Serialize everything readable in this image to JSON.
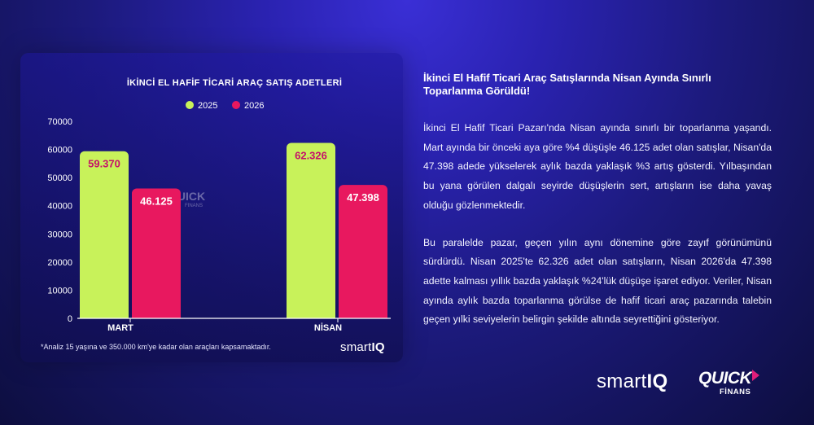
{
  "chart_data": {
    "type": "bar",
    "title": "İKİNCİ EL HAFİF TİCARİ ARAÇ SATIŞ ADETLERİ",
    "categories": [
      "MART",
      "NİSAN"
    ],
    "series": [
      {
        "name": "2025",
        "values": [
          59370,
          62326
        ],
        "labels": [
          "59.370",
          "62.326"
        ],
        "color": "#c8f25a"
      },
      {
        "name": "2026",
        "values": [
          46125,
          47398
        ],
        "labels": [
          "46.125",
          "47.398"
        ],
        "color": "#e8185f"
      }
    ],
    "ylim": [
      0,
      70000
    ],
    "yticks": [
      0,
      10000,
      20000,
      30000,
      40000,
      50000,
      60000,
      70000
    ],
    "xlabel": "",
    "ylabel": "",
    "legend_position": "top-center",
    "grid": false
  },
  "watermark": {
    "word": "QUICK",
    "sub": "FİNANS"
  },
  "footnote": "*Analiz 15 yaşına ve 350.000 km'ye kadar olan araçları kapsamaktadır.",
  "small_logo": {
    "part1": "smart",
    "part2": "IQ"
  },
  "article": {
    "heading": "İkinci El Hafif Ticari Araç Satışlarında Nisan Ayında Sınırlı Toparlanma Görüldü!",
    "paragraph1": "İkinci El Hafif Ticari Pazarı'nda Nisan ayında sınırlı bir toparlanma yaşandı. Mart ayında bir önceki aya göre %4 düşüşle 46.125 adet olan satışlar, Nisan'da 47.398 adede yükselerek aylık bazda yaklaşık %3 artış gösterdi. Yılbaşından bu yana görülen dalgalı seyirde düşüşlerin sert, artışların ise daha yavaş olduğu gözlenmektedir.",
    "paragraph2": "Bu paralelde pazar, geçen yılın aynı dönemine göre zayıf görünümünü sürdürdü. Nisan 2025'te 62.326 adet olan satışların, Nisan 2026'da 47.398 adette kalması yıllık bazda yaklaşık %24'lük düşüşe işaret ediyor. Veriler, Nisan ayında aylık bazda toparlanma görülse de hafif ticari araç pazarında talebin geçen yılki seviyelerin belirgin şekilde altında seyrettiğini gösteriyor."
  },
  "brand_logos": {
    "smartiq": {
      "part1": "smart",
      "part2": "IQ"
    },
    "quick": {
      "word": "QUICK",
      "sub": "FİNANS",
      "arrow_color": "#e11d7a"
    }
  }
}
